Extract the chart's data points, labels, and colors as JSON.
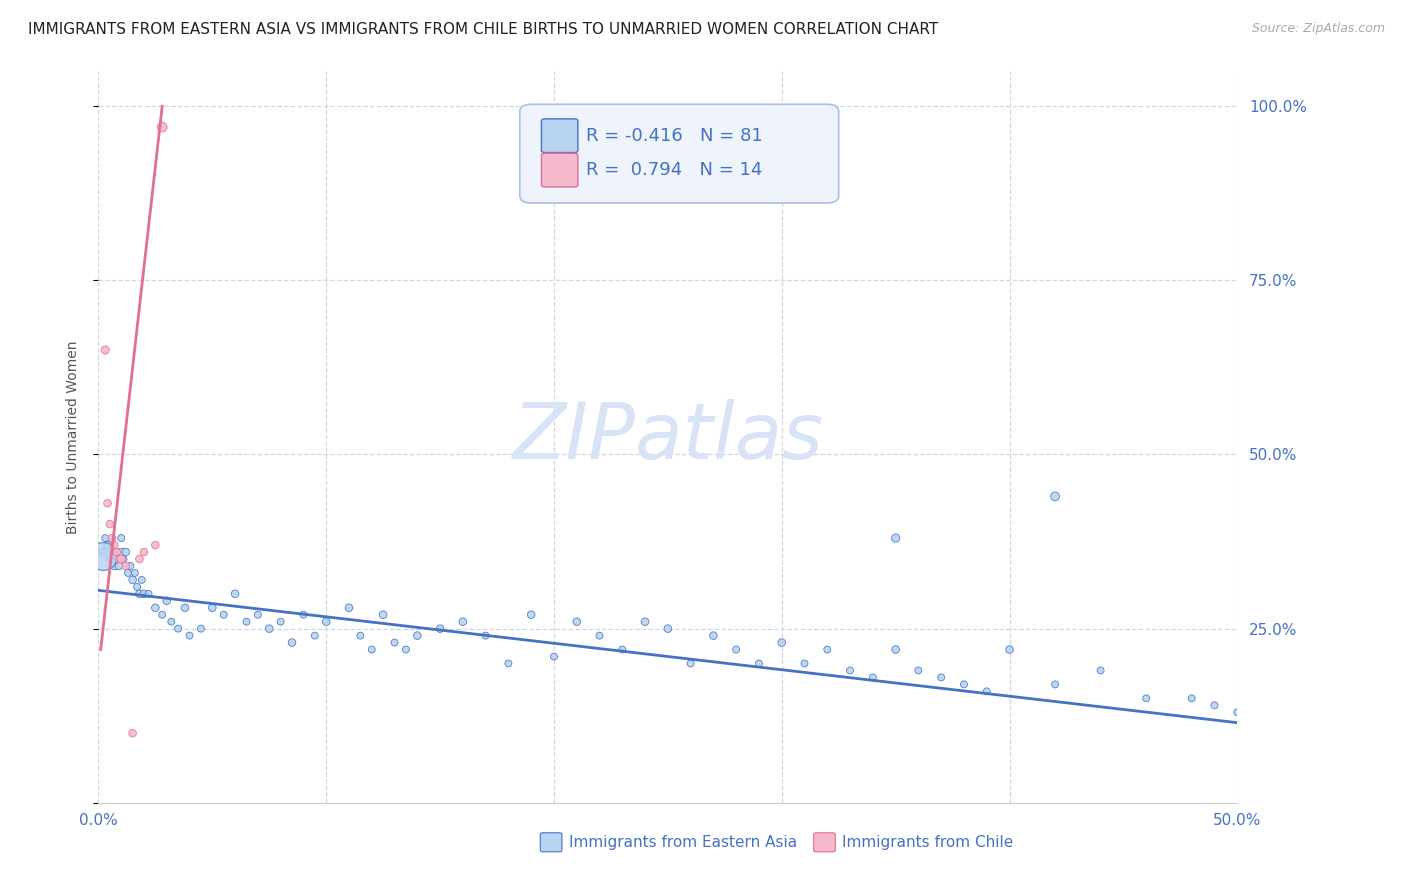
{
  "title": "IMMIGRANTS FROM EASTERN ASIA VS IMMIGRANTS FROM CHILE BIRTHS TO UNMARRIED WOMEN CORRELATION CHART",
  "source": "Source: ZipAtlas.com",
  "ylabel": "Births to Unmarried Women",
  "watermark": "ZIPatlas",
  "series1_name": "Immigrants from Eastern Asia",
  "series1_color": "#b8d4f0",
  "series1_line_color": "#4472c4",
  "series1_R": -0.416,
  "series1_N": 81,
  "series2_name": "Immigrants from Chile",
  "series2_color": "#f5b8cc",
  "series2_line_color": "#e07090",
  "series2_R": 0.794,
  "series2_N": 14,
  "xlim": [
    0.0,
    0.5
  ],
  "ylim": [
    0.0,
    1.05
  ],
  "blue_scatter_x": [
    0.002,
    0.003,
    0.004,
    0.005,
    0.006,
    0.007,
    0.008,
    0.009,
    0.01,
    0.01,
    0.011,
    0.012,
    0.013,
    0.014,
    0.015,
    0.016,
    0.017,
    0.018,
    0.019,
    0.02,
    0.022,
    0.025,
    0.028,
    0.03,
    0.032,
    0.035,
    0.038,
    0.04,
    0.045,
    0.05,
    0.055,
    0.06,
    0.065,
    0.07,
    0.075,
    0.08,
    0.085,
    0.09,
    0.095,
    0.1,
    0.11,
    0.115,
    0.12,
    0.125,
    0.13,
    0.135,
    0.14,
    0.15,
    0.16,
    0.17,
    0.18,
    0.19,
    0.2,
    0.21,
    0.22,
    0.23,
    0.24,
    0.25,
    0.26,
    0.27,
    0.28,
    0.29,
    0.3,
    0.31,
    0.32,
    0.33,
    0.34,
    0.35,
    0.36,
    0.37,
    0.38,
    0.39,
    0.4,
    0.42,
    0.44,
    0.46,
    0.48,
    0.49,
    0.5,
    0.35,
    0.42
  ],
  "blue_scatter_y": [
    0.36,
    0.38,
    0.37,
    0.35,
    0.36,
    0.34,
    0.36,
    0.34,
    0.36,
    0.38,
    0.35,
    0.36,
    0.33,
    0.34,
    0.32,
    0.33,
    0.31,
    0.3,
    0.32,
    0.3,
    0.3,
    0.28,
    0.27,
    0.29,
    0.26,
    0.25,
    0.28,
    0.24,
    0.25,
    0.28,
    0.27,
    0.3,
    0.26,
    0.27,
    0.25,
    0.26,
    0.23,
    0.27,
    0.24,
    0.26,
    0.28,
    0.24,
    0.22,
    0.27,
    0.23,
    0.22,
    0.24,
    0.25,
    0.26,
    0.24,
    0.2,
    0.27,
    0.21,
    0.26,
    0.24,
    0.22,
    0.26,
    0.25,
    0.2,
    0.24,
    0.22,
    0.2,
    0.23,
    0.2,
    0.22,
    0.19,
    0.18,
    0.22,
    0.19,
    0.18,
    0.17,
    0.16,
    0.22,
    0.17,
    0.19,
    0.15,
    0.15,
    0.14,
    0.13,
    0.38,
    0.44
  ],
  "blue_scatter_size": [
    30,
    25,
    30,
    25,
    25,
    30,
    25,
    30,
    30,
    25,
    25,
    30,
    25,
    25,
    30,
    25,
    25,
    30,
    25,
    30,
    25,
    30,
    25,
    30,
    25,
    25,
    30,
    25,
    25,
    30,
    25,
    30,
    25,
    25,
    30,
    25,
    30,
    25,
    25,
    30,
    30,
    25,
    25,
    30,
    25,
    25,
    30,
    30,
    30,
    25,
    25,
    30,
    25,
    30,
    25,
    25,
    30,
    30,
    25,
    30,
    25,
    25,
    30,
    25,
    25,
    25,
    25,
    30,
    25,
    25,
    25,
    25,
    30,
    25,
    25,
    25,
    25,
    25,
    25,
    35,
    40
  ],
  "blue_big_x": [
    0.002
  ],
  "blue_big_y": [
    0.355
  ],
  "blue_big_size": [
    400
  ],
  "pink_scatter_x": [
    0.003,
    0.004,
    0.005,
    0.006,
    0.007,
    0.008,
    0.009,
    0.01,
    0.012,
    0.015,
    0.018,
    0.02,
    0.025,
    0.028
  ],
  "pink_scatter_y": [
    0.65,
    0.43,
    0.4,
    0.38,
    0.37,
    0.36,
    0.35,
    0.35,
    0.34,
    0.1,
    0.35,
    0.36,
    0.37,
    0.97
  ],
  "pink_scatter_size": [
    35,
    30,
    30,
    30,
    30,
    30,
    30,
    35,
    30,
    30,
    30,
    30,
    30,
    50
  ],
  "blue_trend_x": [
    0.0,
    0.5
  ],
  "blue_trend_y": [
    0.305,
    0.115
  ],
  "pink_trend_x": [
    0.001,
    0.028
  ],
  "pink_trend_y": [
    0.22,
    1.0
  ],
  "legend_box_color": "#eef3fc",
  "legend_border_color": "#a8c0e8",
  "title_fontsize": 11,
  "axis_label_fontsize": 10,
  "tick_fontsize": 11,
  "legend_fontsize": 12,
  "watermark_fontsize": 56,
  "watermark_color": "#d8e4f5",
  "source_fontsize": 9,
  "grid_color": "#c8d4e0",
  "axis_color": "#4472c4",
  "background_color": "#ffffff"
}
